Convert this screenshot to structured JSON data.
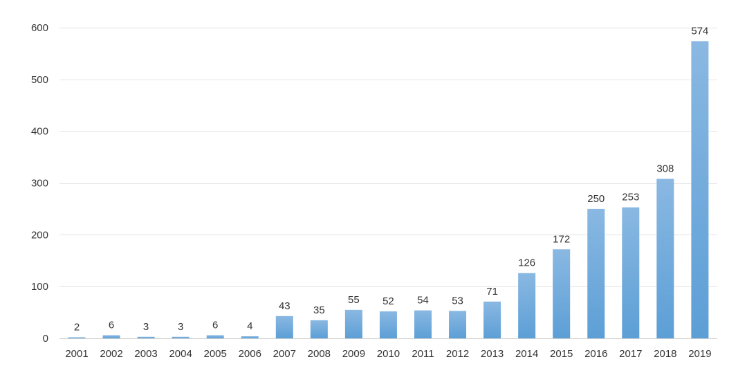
{
  "chart_data": {
    "type": "bar",
    "title": "",
    "xlabel": "",
    "ylabel": "",
    "categories": [
      "2001",
      "2002",
      "2003",
      "2004",
      "2005",
      "2006",
      "2007",
      "2008",
      "2009",
      "2010",
      "2011",
      "2012",
      "2013",
      "2014",
      "2015",
      "2016",
      "2017",
      "2018",
      "2019"
    ],
    "values": [
      2,
      6,
      3,
      3,
      6,
      4,
      43,
      35,
      55,
      52,
      54,
      53,
      71,
      126,
      172,
      250,
      253,
      308,
      574
    ],
    "data_labels": [
      "2",
      "6",
      "3",
      "3",
      "6",
      "4",
      "43",
      "35",
      "55",
      "52",
      "54",
      "53",
      "71",
      "126",
      "172",
      "250",
      "253",
      "308",
      "574"
    ],
    "ylim": [
      0,
      600
    ],
    "yticks": [
      0,
      100,
      200,
      300,
      400,
      500,
      600
    ],
    "ytick_labels": [
      "0",
      "100",
      "200",
      "300",
      "400",
      "500",
      "600"
    ],
    "grid": true,
    "legend": "none",
    "bar_color_top": "#8ab8e2",
    "bar_color_bottom": "#5c9fd6"
  }
}
